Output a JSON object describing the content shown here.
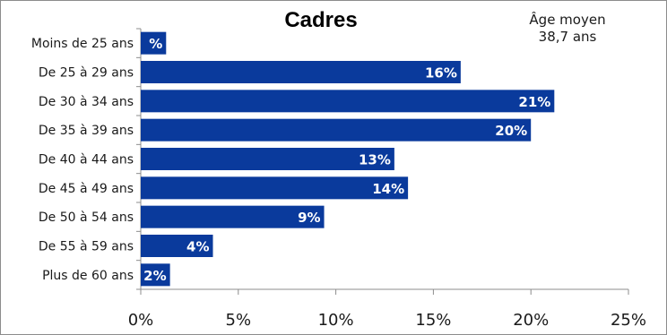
{
  "chart_data": {
    "type": "bar",
    "orientation": "horizontal",
    "title": "Cadres",
    "annotation": {
      "line1": "Âge moyen",
      "line2": "38,7 ans"
    },
    "categories": [
      "Moins de 25 ans",
      "De 25 à 29 ans",
      "De 30 à 34 ans",
      "De 35 à 39 ans",
      "De 40 à 44 ans",
      "De 45 à 49 ans",
      "De 50 à 54 ans",
      "De 55 à 59 ans",
      "Plus de 60 ans"
    ],
    "values": [
      1.3,
      16.4,
      21.2,
      20.0,
      13.0,
      13.7,
      9.4,
      3.7,
      1.5
    ],
    "value_labels": [
      "%",
      "16%",
      "21%",
      "20%",
      "13%",
      "14%",
      "9%",
      "4%",
      "2%"
    ],
    "x_ticks": [
      "0%",
      "5%",
      "10%",
      "15%",
      "20%",
      "25%"
    ],
    "xlim": [
      0,
      25
    ],
    "xlabel": "",
    "ylabel": "",
    "grid": false,
    "legend": "none",
    "bar_color": "#0a3a9c"
  }
}
